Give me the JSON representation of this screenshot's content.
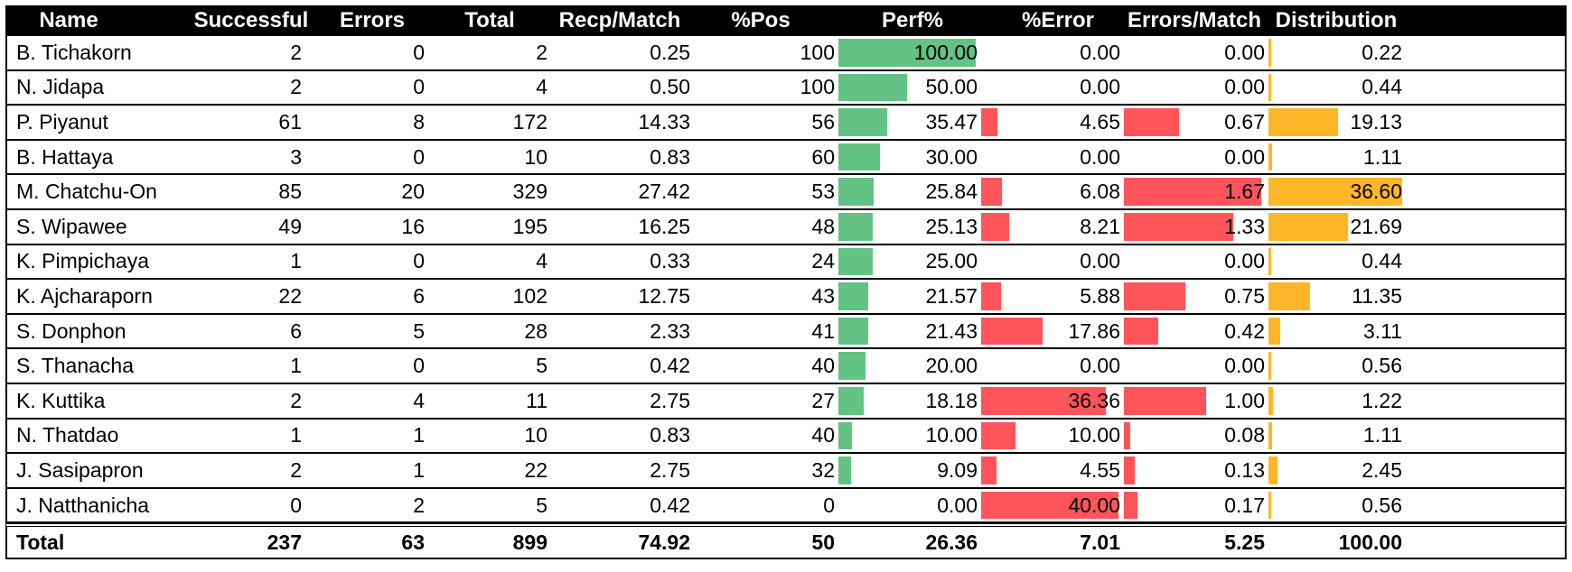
{
  "colors": {
    "perf_bar": "#63c384",
    "error_bar": "#ff555a",
    "distribution_bar": "#ffb628",
    "header_bg": "#000000"
  },
  "headers": [
    "Name",
    "Successful",
    "Errors",
    "Total",
    "Recp/Match",
    "%Pos",
    "Perf%",
    "%Error",
    "Errors/Match",
    "Distribution"
  ],
  "bar_scales": {
    "perf_max": 100,
    "error_max": 40,
    "errors_per_match_max": 1.67,
    "distribution_max": 36.6
  },
  "rows": [
    {
      "name": "B. Tichakorn",
      "successful": "2",
      "errors": "0",
      "total": "2",
      "recp_match": "0.25",
      "pos": "100",
      "perf": "100.00",
      "error_pct": "0.00",
      "errors_match": "0.00",
      "distribution": "0.22"
    },
    {
      "name": "N. Jidapa",
      "successful": "2",
      "errors": "0",
      "total": "4",
      "recp_match": "0.50",
      "pos": "100",
      "perf": "50.00",
      "error_pct": "0.00",
      "errors_match": "0.00",
      "distribution": "0.44"
    },
    {
      "name": "P. Piyanut",
      "successful": "61",
      "errors": "8",
      "total": "172",
      "recp_match": "14.33",
      "pos": "56",
      "perf": "35.47",
      "error_pct": "4.65",
      "errors_match": "0.67",
      "distribution": "19.13"
    },
    {
      "name": "B. Hattaya",
      "successful": "3",
      "errors": "0",
      "total": "10",
      "recp_match": "0.83",
      "pos": "60",
      "perf": "30.00",
      "error_pct": "0.00",
      "errors_match": "0.00",
      "distribution": "1.11"
    },
    {
      "name": "M. Chatchu-On",
      "successful": "85",
      "errors": "20",
      "total": "329",
      "recp_match": "27.42",
      "pos": "53",
      "perf": "25.84",
      "error_pct": "6.08",
      "errors_match": "1.67",
      "distribution": "36.60"
    },
    {
      "name": "S. Wipawee",
      "successful": "49",
      "errors": "16",
      "total": "195",
      "recp_match": "16.25",
      "pos": "48",
      "perf": "25.13",
      "error_pct": "8.21",
      "errors_match": "1.33",
      "distribution": "21.69"
    },
    {
      "name": "K. Pimpichaya",
      "successful": "1",
      "errors": "0",
      "total": "4",
      "recp_match": "0.33",
      "pos": "24",
      "perf": "25.00",
      "error_pct": "0.00",
      "errors_match": "0.00",
      "distribution": "0.44"
    },
    {
      "name": "K. Ajcharaporn",
      "successful": "22",
      "errors": "6",
      "total": "102",
      "recp_match": "12.75",
      "pos": "43",
      "perf": "21.57",
      "error_pct": "5.88",
      "errors_match": "0.75",
      "distribution": "11.35"
    },
    {
      "name": "S. Donphon",
      "successful": "6",
      "errors": "5",
      "total": "28",
      "recp_match": "2.33",
      "pos": "41",
      "perf": "21.43",
      "error_pct": "17.86",
      "errors_match": "0.42",
      "distribution": "3.11"
    },
    {
      "name": "S. Thanacha",
      "successful": "1",
      "errors": "0",
      "total": "5",
      "recp_match": "0.42",
      "pos": "40",
      "perf": "20.00",
      "error_pct": "0.00",
      "errors_match": "0.00",
      "distribution": "0.56"
    },
    {
      "name": "K. Kuttika",
      "successful": "2",
      "errors": "4",
      "total": "11",
      "recp_match": "2.75",
      "pos": "27",
      "perf": "18.18",
      "error_pct": "36.36",
      "errors_match": "1.00",
      "distribution": "1.22"
    },
    {
      "name": "N. Thatdao",
      "successful": "1",
      "errors": "1",
      "total": "10",
      "recp_match": "0.83",
      "pos": "40",
      "perf": "10.00",
      "error_pct": "10.00",
      "errors_match": "0.08",
      "distribution": "1.11"
    },
    {
      "name": "J. Sasipapron",
      "successful": "2",
      "errors": "1",
      "total": "22",
      "recp_match": "2.75",
      "pos": "32",
      "perf": "9.09",
      "error_pct": "4.55",
      "errors_match": "0.13",
      "distribution": "2.45"
    },
    {
      "name": "J. Natthanicha",
      "successful": "0",
      "errors": "2",
      "total": "5",
      "recp_match": "0.42",
      "pos": "0",
      "perf": "0.00",
      "error_pct": "40.00",
      "errors_match": "0.17",
      "distribution": "0.56"
    }
  ],
  "totals": {
    "name": "Total",
    "successful": "237",
    "errors": "63",
    "total": "899",
    "recp_match": "74.92",
    "pos": "50",
    "perf": "26.36",
    "error_pct": "7.01",
    "errors_match": "5.25",
    "distribution": "100.00"
  }
}
